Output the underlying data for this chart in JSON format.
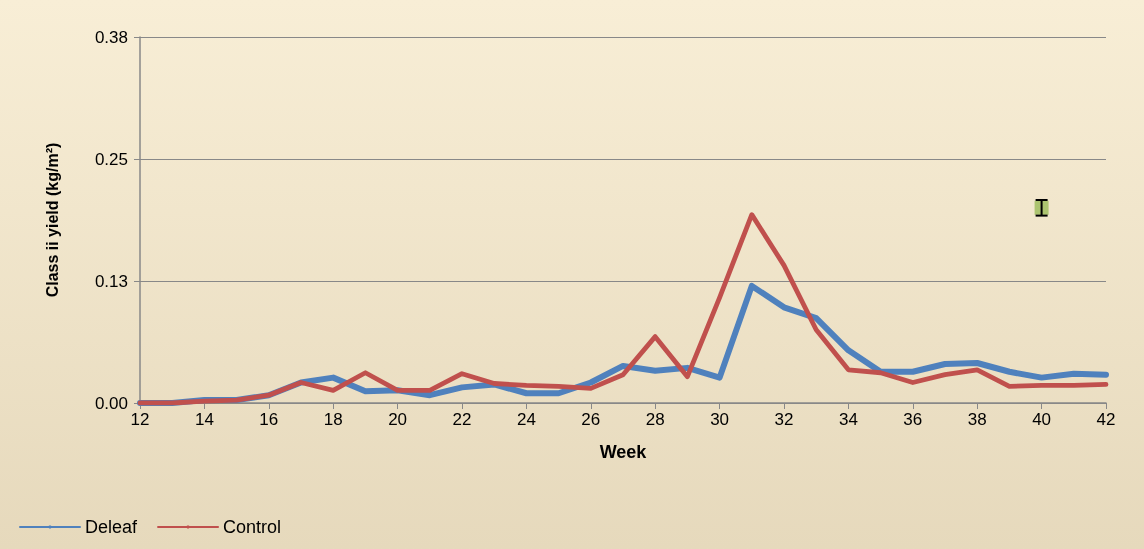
{
  "chart_data": {
    "type": "line",
    "xlabel": "Week",
    "ylabel": "Class ii yield (kg/m²)",
    "x": [
      12,
      13,
      14,
      15,
      16,
      17,
      18,
      19,
      20,
      21,
      22,
      23,
      24,
      25,
      26,
      27,
      28,
      29,
      30,
      31,
      32,
      33,
      34,
      35,
      36,
      37,
      38,
      39,
      40,
      41,
      42
    ],
    "series": [
      {
        "name": "Deleaf",
        "color": "#4f81bd",
        "marker": "none",
        "values": [
          0,
          0,
          0.003,
          0.003,
          0.008,
          0.021,
          0.026,
          0.012,
          0.013,
          0.008,
          0.016,
          0.019,
          0.01,
          0.01,
          0.021,
          0.038,
          0.033,
          0.036,
          0.026,
          0.12,
          0.098,
          0.087,
          0.054,
          0.032,
          0.032,
          0.04,
          0.041,
          0.032,
          0.026,
          0.03,
          0.029
        ]
      },
      {
        "name": "Control",
        "color": "#c0504d",
        "marker": "none",
        "values": [
          0,
          0,
          0.002,
          0.003,
          0.008,
          0.021,
          0.013,
          0.031,
          0.013,
          0.013,
          0.03,
          0.02,
          0.018,
          0.017,
          0.015,
          0.029,
          0.068,
          0.027,
          0.108,
          0.193,
          0.141,
          0.075,
          0.034,
          0.031,
          0.021,
          0.029,
          0.034,
          0.017,
          0.018,
          0.018,
          0.019
        ]
      },
      {
        "type": "scatter",
        "color": "#9bbb59",
        "marker": "square",
        "x": [
          40
        ],
        "values": [
          0.2
        ],
        "errors": [
          0.008
        ]
      }
    ],
    "xlim": [
      12,
      42
    ],
    "xticks": [
      12,
      14,
      16,
      18,
      20,
      22,
      24,
      26,
      28,
      30,
      32,
      34,
      36,
      38,
      40,
      42
    ],
    "ylim": [
      0,
      0.375
    ],
    "yticks": [
      {
        "value": 0,
        "label": "0.00"
      },
      {
        "value": 0.125,
        "label": "0.13"
      },
      {
        "value": 0.25,
        "label": "0.25"
      },
      {
        "value": 0.375,
        "label": "0.38"
      }
    ],
    "grid": "y",
    "legend": "bottom left",
    "line_style": "solid"
  }
}
